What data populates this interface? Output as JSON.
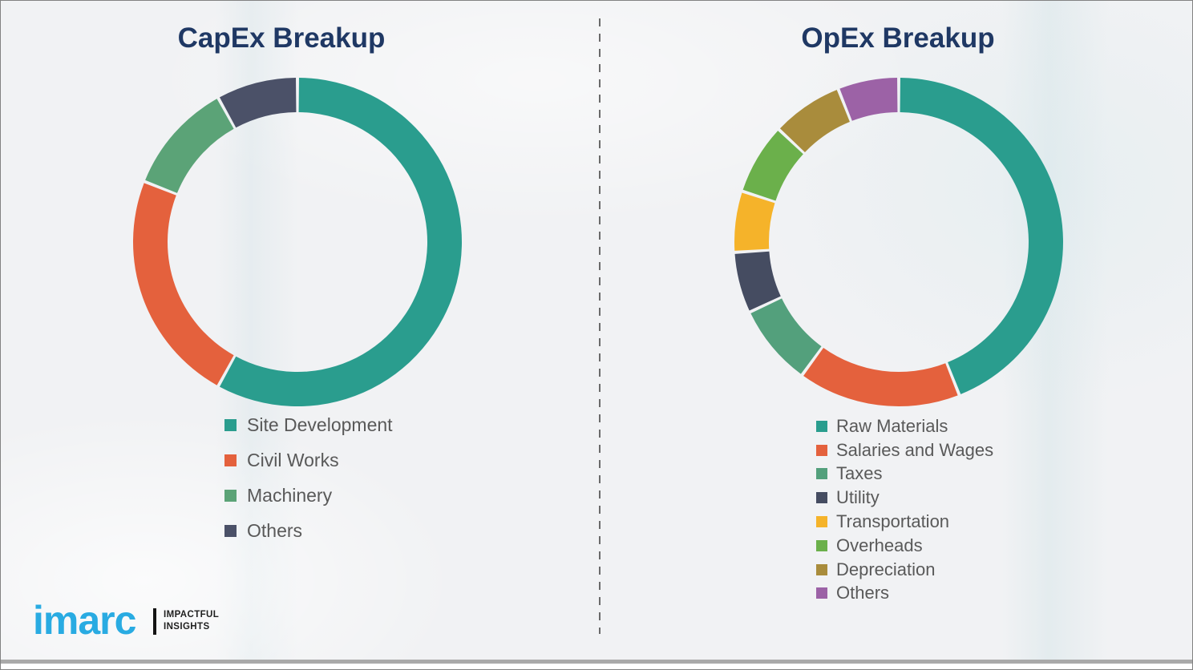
{
  "slide": {
    "background_color": "#f1f2f4",
    "title_color": "#1f3864",
    "legend_text_color": "#595959",
    "divider_color": "#6a6a6a",
    "bottom_strip_color": "#a9a9a9"
  },
  "chart_data": [
    {
      "type": "pie",
      "subtype": "donut",
      "title": "CapEx Breakup",
      "labels": [
        "Site Development",
        "Civil Works",
        "Machinery",
        "Others"
      ],
      "values": [
        58,
        23,
        11,
        8
      ],
      "colors": [
        "#2a9d8e",
        "#e4613d",
        "#5ba377",
        "#4b5168"
      ],
      "units": "percent",
      "start_angle_deg": 0,
      "direction": "clockwise",
      "legend_position": "below-left"
    },
    {
      "type": "pie",
      "subtype": "donut",
      "title": "OpEx Breakup",
      "labels": [
        "Raw Materials",
        "Salaries and Wages",
        "Taxes",
        "Utility",
        "Transportation",
        "Overheads",
        "Depreciation",
        "Others"
      ],
      "values": [
        44,
        16,
        8,
        6,
        6,
        7,
        7,
        6
      ],
      "colors": [
        "#2a9d8e",
        "#e4613d",
        "#53a07c",
        "#454c61",
        "#f5b32a",
        "#6bb04b",
        "#a98c3c",
        "#9c62a6"
      ],
      "units": "percent",
      "start_angle_deg": 0,
      "direction": "clockwise",
      "legend_position": "below-left"
    }
  ],
  "logo": {
    "brand": "imarc",
    "brand_color": "#29abe2",
    "tagline_line1": "IMPACTFUL",
    "tagline_line2": "INSIGHTS"
  }
}
